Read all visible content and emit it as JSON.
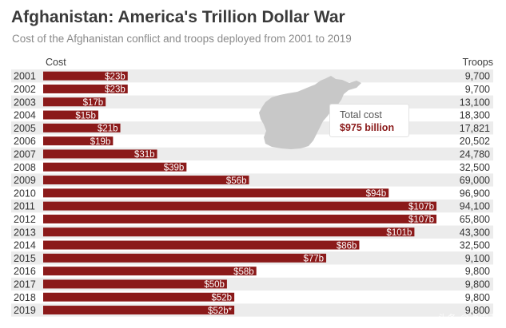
{
  "header": {
    "title": "Afghanistan: America's Trillion Dollar War",
    "subtitle": "Cost of the Afghanistan conflict and troops deployed from 2001 to 2019"
  },
  "columns": {
    "cost": "Cost",
    "troops": "Troops"
  },
  "callout": {
    "label": "Total cost",
    "value": "$975 billion"
  },
  "watermark": "头条 @读史者",
  "colors": {
    "bar": "#8b1a1a",
    "row_alt": "#ececec",
    "map": "#c8c8c8"
  },
  "chart_data": {
    "type": "bar",
    "orientation": "horizontal",
    "title": "Afghanistan: America's Trillion Dollar War",
    "subtitle": "Cost of the Afghanistan conflict and troops deployed from 2001 to 2019",
    "categories": [
      "2001",
      "2002",
      "2003",
      "2004",
      "2005",
      "2006",
      "2007",
      "2008",
      "2009",
      "2010",
      "2011",
      "2012",
      "2013",
      "2014",
      "2015",
      "2016",
      "2017",
      "2018",
      "2019"
    ],
    "series": [
      {
        "name": "Cost",
        "unit": "billion USD",
        "values": [
          23,
          23,
          17,
          15,
          21,
          19,
          31,
          39,
          56,
          94,
          107,
          107,
          101,
          86,
          77,
          58,
          50,
          52,
          52
        ],
        "labels": [
          "$23b",
          "$23b",
          "$17b",
          "$15b",
          "$21b",
          "$19b",
          "$31b",
          "$39b",
          "$56b",
          "$94b",
          "$107b",
          "$107b",
          "$101b",
          "$86b",
          "$77b",
          "$58b",
          "$50b",
          "$52b",
          "$52b*"
        ]
      },
      {
        "name": "Troops",
        "labels": [
          "9,700",
          "9,700",
          "13,100",
          "18,300",
          "17,821",
          "20,502",
          "24,780",
          "32,500",
          "69,000",
          "96,900",
          "94,100",
          "65,800",
          "43,300",
          "32,500",
          "9,100",
          "9,800",
          "9,800",
          "9,800",
          "9,800"
        ]
      }
    ],
    "xlim": [
      0,
      107
    ]
  }
}
